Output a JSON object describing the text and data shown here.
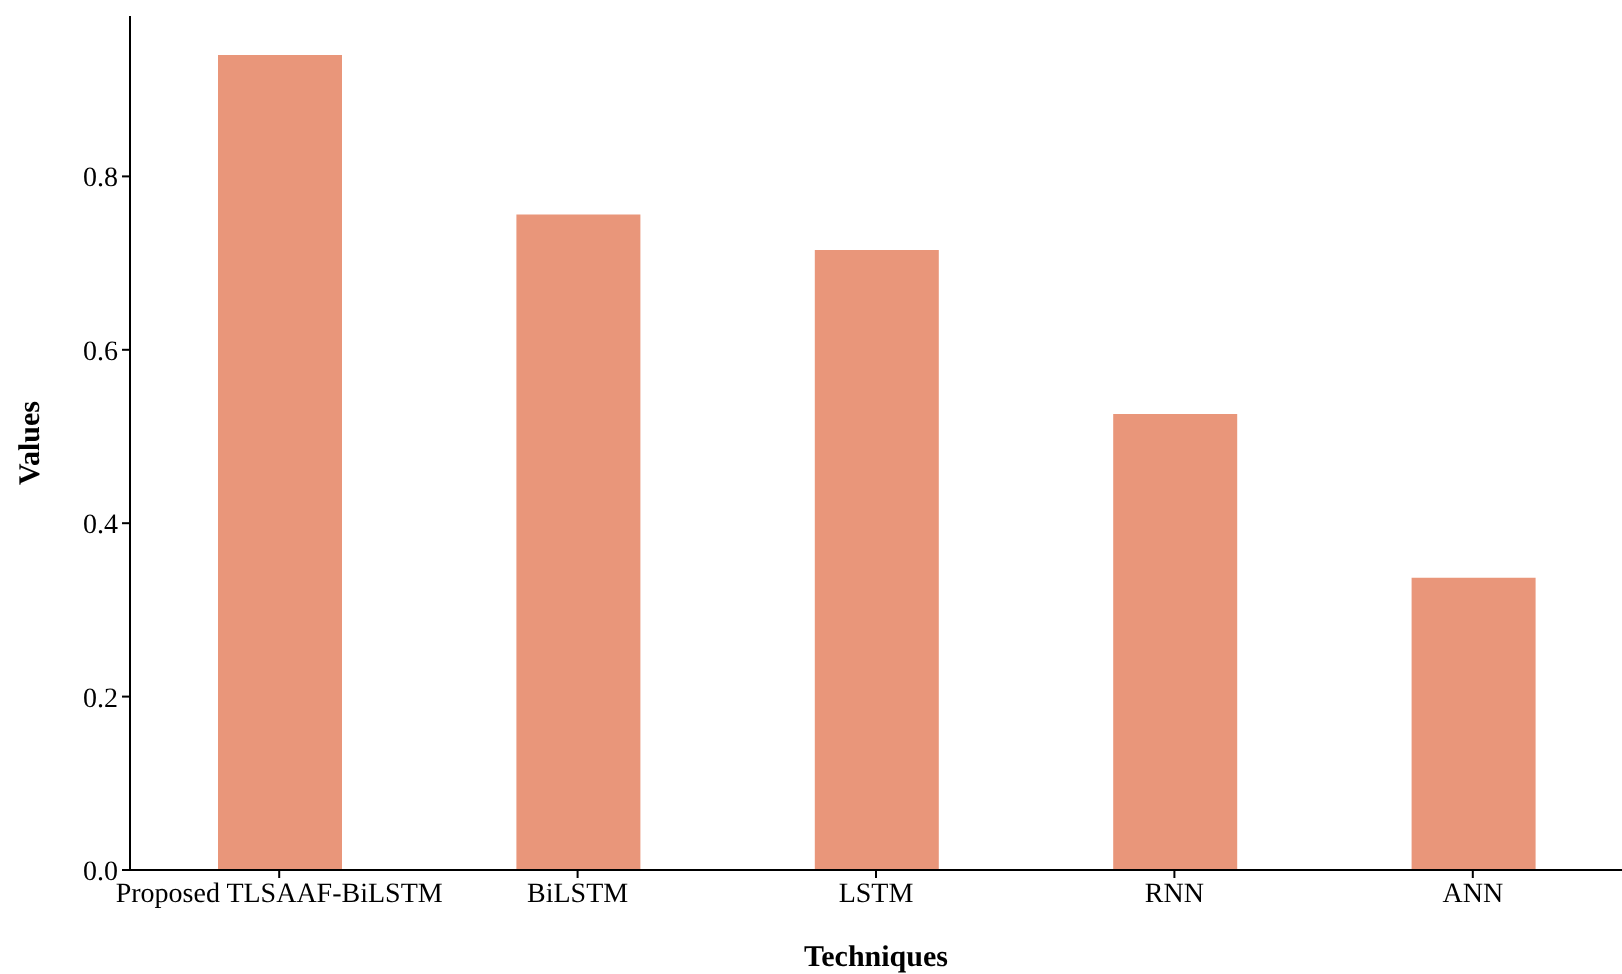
{
  "chart_data": {
    "type": "bar",
    "xlabel": "Techniques",
    "ylabel": "Values",
    "categories": [
      "Proposed TLSAAF-BiLSTM",
      "BiLSTM",
      "LSTM",
      "RNN",
      "ANN"
    ],
    "values": [
      0.94,
      0.756,
      0.715,
      0.526,
      0.337
    ],
    "color": "#e9967a",
    "ylim": [
      0,
      0.985
    ],
    "yticks": [
      {
        "value": 0,
        "label": "0.0"
      },
      {
        "value": 0.2,
        "label": "0.2"
      },
      {
        "value": 0.4,
        "label": "0.4"
      },
      {
        "value": 0.6,
        "label": "0.6"
      },
      {
        "value": 0.8,
        "label": "0.8"
      }
    ],
    "grid": false,
    "legend": false
  }
}
